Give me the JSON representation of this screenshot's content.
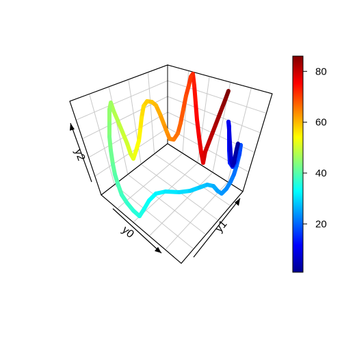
{
  "chart_data": {
    "type": "line",
    "style": "3d-perspective-line",
    "axes": {
      "x_label": "y0",
      "y_label": "y1",
      "z_label": "y2"
    },
    "grid": true,
    "colorbar": {
      "position": "right",
      "palette": "jet",
      "range": [
        1,
        86
      ],
      "ticks": [
        20,
        40,
        60,
        80
      ],
      "colors": [
        "#00008F",
        "#0000FF",
        "#0080FF",
        "#00FFFF",
        "#80FF80",
        "#FFFF00",
        "#FF8000",
        "#FF0000",
        "#800000"
      ]
    },
    "series": [
      {
        "color_by": "index",
        "values": [
          {
            "i": 1,
            "v": 1
          },
          {
            "i": 5,
            "v": 5
          },
          {
            "i": 10,
            "v": 10
          },
          {
            "i": 15,
            "v": 15
          },
          {
            "i": 20,
            "v": 20
          },
          {
            "i": 25,
            "v": 25
          },
          {
            "i": 30,
            "v": 30
          },
          {
            "i": 35,
            "v": 35
          },
          {
            "i": 40,
            "v": 40
          },
          {
            "i": 45,
            "v": 45
          },
          {
            "i": 50,
            "v": 50
          },
          {
            "i": 55,
            "v": 55
          },
          {
            "i": 60,
            "v": 60
          },
          {
            "i": 65,
            "v": 65
          },
          {
            "i": 70,
            "v": 70
          },
          {
            "i": 75,
            "v": 75
          },
          {
            "i": 80,
            "v": 80
          },
          {
            "i": 86,
            "v": 86
          }
        ]
      }
    ]
  }
}
